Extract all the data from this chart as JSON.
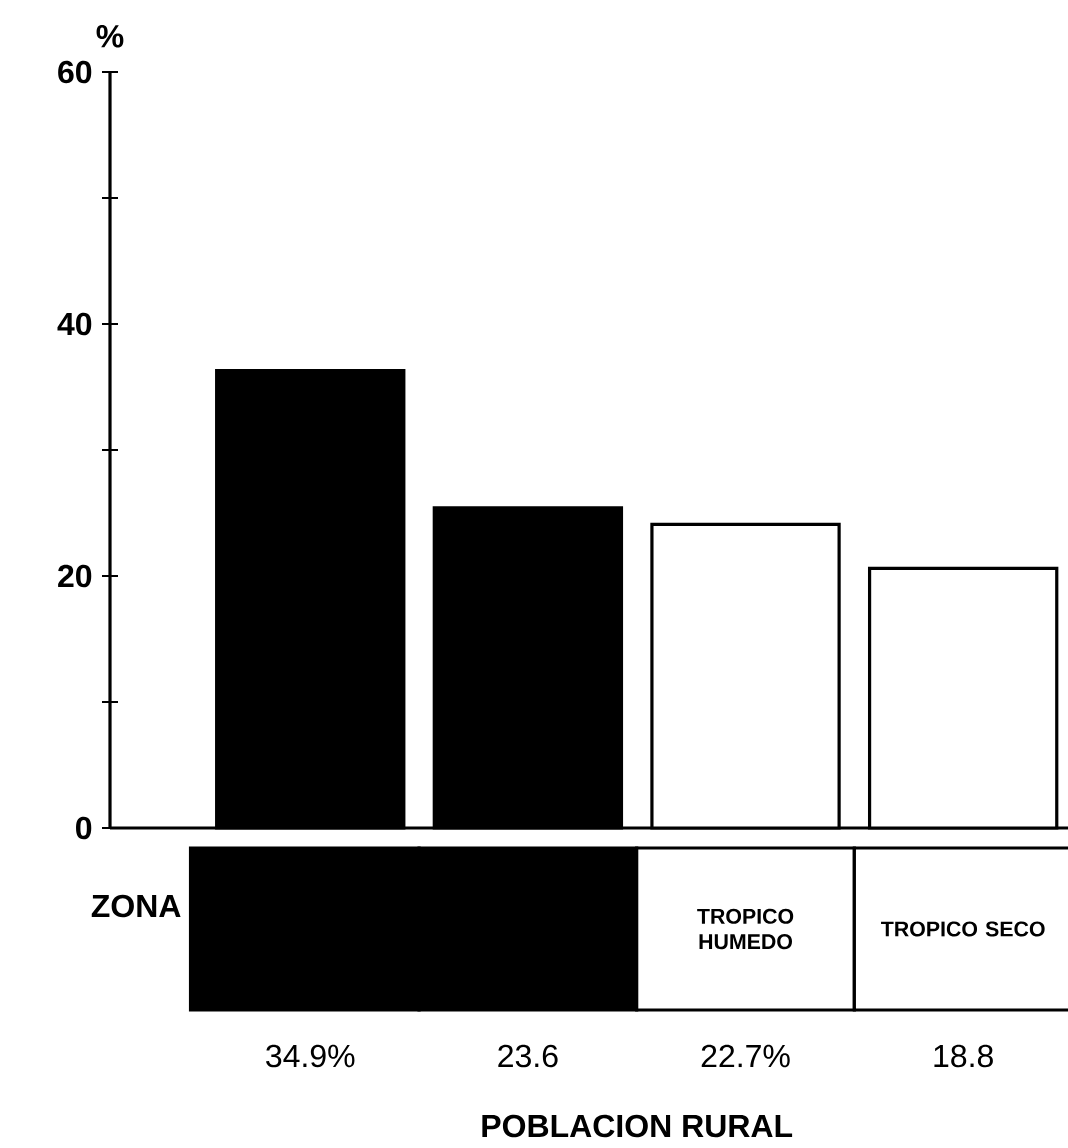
{
  "chart_data": {
    "type": "bar",
    "categories": [
      null,
      null,
      "TROPICO HUMEDO",
      "TROPICO SECO"
    ],
    "values": [
      36.3,
      25.4,
      24.1,
      20.6
    ],
    "colors": [
      "#000000",
      "#000000",
      "#ffffff",
      "#ffffff"
    ],
    "ylabel": "%",
    "xlabel": "ZONA",
    "ylim": [
      0,
      60
    ],
    "yticks": [
      0,
      {
        "value": 10,
        "label": null
      },
      20,
      {
        "value": 30,
        "label": null
      },
      40,
      {
        "value": 50,
        "label": null
      },
      60
    ],
    "annotations": [
      "34.9%",
      "23.6",
      "22.7%",
      "18.8",
      "POBLACION RURAL"
    ],
    "grid": false
  }
}
